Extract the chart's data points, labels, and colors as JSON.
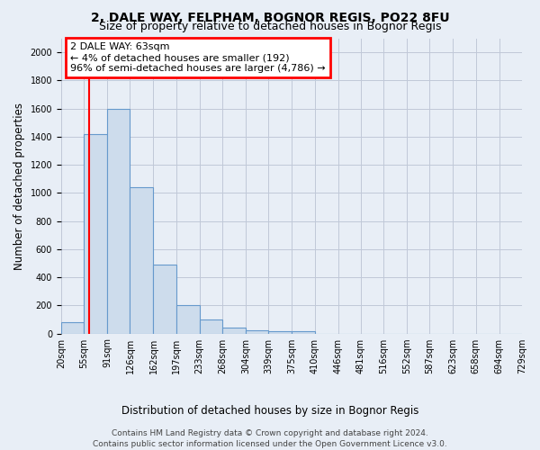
{
  "title_line1": "2, DALE WAY, FELPHAM, BOGNOR REGIS, PO22 8FU",
  "title_line2": "Size of property relative to detached houses in Bognor Regis",
  "xlabel": "Distribution of detached houses by size in Bognor Regis",
  "ylabel": "Number of detached properties",
  "bar_color": "#cddcec",
  "bar_edge_color": "#6699cc",
  "background_color": "#e8eef6",
  "bin_labels": [
    "20sqm",
    "55sqm",
    "91sqm",
    "126sqm",
    "162sqm",
    "197sqm",
    "233sqm",
    "268sqm",
    "304sqm",
    "339sqm",
    "375sqm",
    "410sqm",
    "446sqm",
    "481sqm",
    "516sqm",
    "552sqm",
    "587sqm",
    "623sqm",
    "658sqm",
    "694sqm",
    "729sqm"
  ],
  "bin_edges": [
    20,
    55,
    91,
    126,
    162,
    197,
    233,
    268,
    304,
    339,
    375,
    410,
    446,
    481,
    516,
    552,
    587,
    623,
    658,
    694,
    729
  ],
  "values": [
    80,
    1420,
    1600,
    1040,
    490,
    200,
    100,
    40,
    25,
    20,
    15,
    0,
    0,
    0,
    0,
    0,
    0,
    0,
    0,
    0
  ],
  "ylim": [
    0,
    2100
  ],
  "yticks": [
    0,
    200,
    400,
    600,
    800,
    1000,
    1200,
    1400,
    1600,
    1800,
    2000
  ],
  "annotation_text": "2 DALE WAY: 63sqm\n← 4% of detached houses are smaller (192)\n96% of semi-detached houses are larger (4,786) →",
  "annotation_box_color": "white",
  "annotation_box_edge_color": "red",
  "red_line_x": 63,
  "footer_line1": "Contains HM Land Registry data © Crown copyright and database right 2024.",
  "footer_line2": "Contains public sector information licensed under the Open Government Licence v3.0.",
  "grid_color": "#c0c8d8",
  "title_fontsize": 10,
  "subtitle_fontsize": 9,
  "axis_label_fontsize": 8.5,
  "tick_fontsize": 7,
  "footer_fontsize": 6.5,
  "annotation_fontsize": 8
}
